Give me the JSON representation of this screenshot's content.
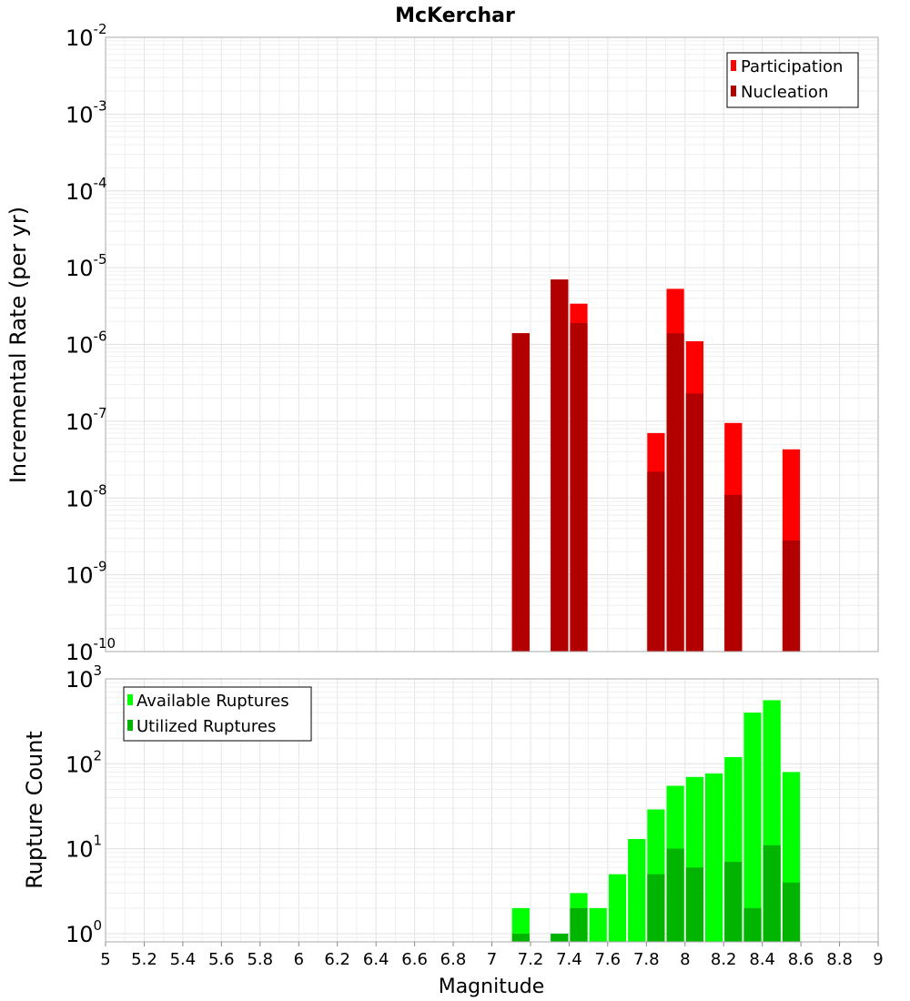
{
  "chart_data": [
    {
      "type": "bar",
      "title": "McKerchar",
      "xlabel": "",
      "ylabel": "Incremental Rate (per yr)",
      "yscale": "log",
      "xlim": [
        5,
        9
      ],
      "ylim": [
        1e-10,
        0.01
      ],
      "y_decades": [
        {
          "base": "10",
          "exp": "-10"
        },
        {
          "base": "10",
          "exp": "-9"
        },
        {
          "base": "10",
          "exp": "-8"
        },
        {
          "base": "10",
          "exp": "-7"
        },
        {
          "base": "10",
          "exp": "-6"
        },
        {
          "base": "10",
          "exp": "-5"
        },
        {
          "base": "10",
          "exp": "-4"
        },
        {
          "base": "10",
          "exp": "-3"
        },
        {
          "base": "10",
          "exp": "-2"
        }
      ],
      "bin_width": 0.1,
      "legend_position": "top-right",
      "series": [
        {
          "name": "Participation",
          "color": "#ff0000",
          "points": [
            [
              7.15,
              1.4e-06
            ],
            [
              7.35,
              7e-06
            ],
            [
              7.45,
              3.4e-06
            ],
            [
              7.85,
              7e-08
            ],
            [
              7.95,
              5.3e-06
            ],
            [
              8.05,
              1.1e-06
            ],
            [
              8.25,
              9.5e-08
            ],
            [
              8.55,
              4.3e-08
            ]
          ]
        },
        {
          "name": "Nucleation",
          "color": "#b20000",
          "points": [
            [
              7.15,
              1.4e-06
            ],
            [
              7.35,
              7e-06
            ],
            [
              7.45,
              1.9e-06
            ],
            [
              7.85,
              2.2e-08
            ],
            [
              7.95,
              1.4e-06
            ],
            [
              8.05,
              2.3e-07
            ],
            [
              8.25,
              1.1e-08
            ],
            [
              8.55,
              2.8e-09
            ]
          ]
        }
      ]
    },
    {
      "type": "bar",
      "title": "",
      "xlabel": "Magnitude",
      "ylabel": "Rupture Count",
      "yscale": "log",
      "xlim": [
        5,
        9
      ],
      "ylim": [
        0.8,
        1000
      ],
      "y_decades": [
        {
          "base": "10",
          "exp": "0"
        },
        {
          "base": "10",
          "exp": "1"
        },
        {
          "base": "10",
          "exp": "2"
        },
        {
          "base": "10",
          "exp": "3"
        }
      ],
      "x_ticks": [
        "5",
        "5.2",
        "5.4",
        "5.6",
        "5.8",
        "6",
        "6.2",
        "6.4",
        "6.6",
        "6.8",
        "7",
        "7.2",
        "7.4",
        "7.6",
        "7.8",
        "8",
        "8.2",
        "8.4",
        "8.6",
        "8.8",
        "9"
      ],
      "bin_width": 0.1,
      "legend_position": "top-left",
      "series": [
        {
          "name": "Available Ruptures",
          "color": "#00ff00",
          "points": [
            [
              7.15,
              2
            ],
            [
              7.35,
              1
            ],
            [
              7.45,
              3
            ],
            [
              7.55,
              2
            ],
            [
              7.65,
              5
            ],
            [
              7.75,
              13
            ],
            [
              7.85,
              29
            ],
            [
              7.95,
              55
            ],
            [
              8.05,
              70
            ],
            [
              8.15,
              77
            ],
            [
              8.25,
              120
            ],
            [
              8.35,
              400
            ],
            [
              8.45,
              560
            ],
            [
              8.55,
              80
            ]
          ]
        },
        {
          "name": "Utilized Ruptures",
          "color": "#00b400",
          "points": [
            [
              7.15,
              1
            ],
            [
              7.35,
              1
            ],
            [
              7.45,
              2
            ],
            [
              7.85,
              5
            ],
            [
              7.95,
              10
            ],
            [
              8.05,
              6
            ],
            [
              8.25,
              7
            ],
            [
              8.35,
              2
            ],
            [
              8.45,
              11
            ],
            [
              8.55,
              4
            ]
          ]
        }
      ]
    }
  ]
}
